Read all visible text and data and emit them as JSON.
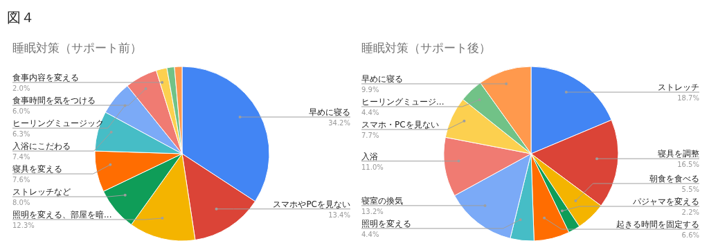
{
  "chart_data": [
    {
      "type": "pie",
      "title": "睡眠対策（サポート前）",
      "annotations": [
        "図４"
      ],
      "categories": [
        "早めに寝る",
        "スマホやPCを見ない",
        "照明を変える、部屋を暗...",
        "ストレッチなど",
        "寝具を変える",
        "入浴にこだわる",
        "ヒーリングミュージック",
        "食事時間を気をつける",
        "食事内容を変える",
        null,
        null
      ],
      "values": [
        34.2,
        13.4,
        12.3,
        8.0,
        7.6,
        7.4,
        6.3,
        6.0,
        2.0,
        1.4,
        1.4
      ],
      "value_labels": [
        "34.2%",
        "13.4%",
        "12.3%",
        "8.0%",
        "7.6%",
        "7.4%",
        "6.3%",
        "6.0%",
        "2.0%",
        null,
        null
      ],
      "colors": [
        "#4285f4",
        "#db4437",
        "#f4b400",
        "#0f9d58",
        "#ff6d01",
        "#46bdc6",
        "#7baaf7",
        "#f07b72",
        "#fcd04f",
        "#71c287",
        "#ff994d"
      ]
    },
    {
      "type": "pie",
      "title": "睡眠対策（サポート後）",
      "categories": [
        "ストレッチ",
        "寝具を調整",
        "朝食を食べる",
        "パジャマを変える",
        "起きる時間を固定する",
        "照明を変える",
        "寝室の換気",
        "入浴",
        "スマホ・PCを見ない",
        "ヒーリングミュージ...",
        "早めに寝る"
      ],
      "values": [
        18.7,
        16.5,
        5.5,
        2.2,
        6.6,
        4.4,
        13.2,
        11.0,
        7.7,
        4.4,
        9.9
      ],
      "value_labels": [
        "18.7%",
        "16.5%",
        "5.5%",
        "2.2%",
        "6.6%",
        "4.4%",
        "13.2%",
        "11.0%",
        "7.7%",
        "4.4%",
        "9.9%"
      ],
      "colors": [
        "#4285f4",
        "#db4437",
        "#f4b400",
        "#0f9d58",
        "#ff6d01",
        "#46bdc6",
        "#7baaf7",
        "#f07b72",
        "#fcd04f",
        "#71c287",
        "#ff994d"
      ]
    }
  ]
}
